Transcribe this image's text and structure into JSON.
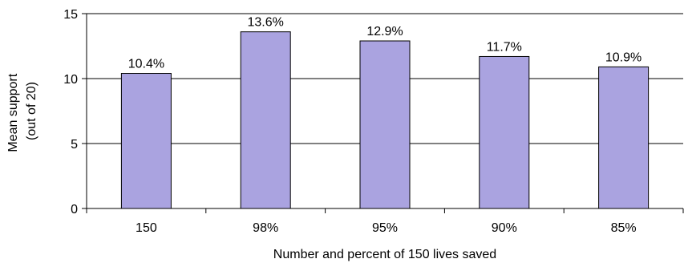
{
  "chart_data": {
    "type": "bar",
    "categories": [
      "150",
      "98%",
      "95%",
      "90%",
      "85%"
    ],
    "values": [
      10.4,
      13.6,
      12.9,
      11.7,
      10.9
    ],
    "data_labels": [
      "10.4%",
      "13.6%",
      "12.9%",
      "11.7%",
      "10.9%"
    ],
    "xlabel": "Number and percent of 150 lives saved",
    "ylabel_lines": [
      "Mean support",
      "(out of 20)"
    ],
    "ylim": [
      0,
      15
    ],
    "yticks": [
      0,
      5,
      10,
      15
    ],
    "ytick_labels": [
      "0",
      "5",
      "10",
      "15"
    ],
    "grid": true,
    "legend": false,
    "colors": {
      "bar_fill": "#aaa3e0",
      "bar_stroke": "#000000",
      "grid": "#000000",
      "axis": "#000000"
    }
  }
}
